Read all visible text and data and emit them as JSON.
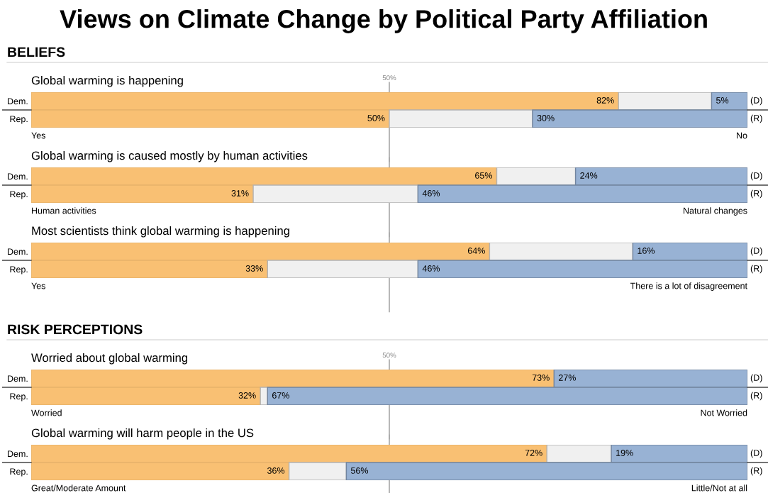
{
  "chart_data": [
    {
      "type": "other",
      "title": "Views on Climate Change by Political Party Affiliation"
    },
    {
      "type": "bar",
      "orientation": "horizontal",
      "stacked": true,
      "subtitle": "BELIEFS",
      "title": "Global warming is happening",
      "categories": [
        "Dem.",
        "Rep."
      ],
      "xlim": [
        0,
        100
      ],
      "tick_labels": "y",
      "grid": false,
      "legend": false,
      "series": [
        {
          "color": "#f9c073",
          "values": [
            82,
            50
          ],
          "value_labels": [
            "82%",
            "50%"
          ]
        },
        {
          "color": "#f0f0f0",
          "values": [
            13,
            20
          ]
        },
        {
          "color": "#98b2d4",
          "values": [
            5,
            30
          ],
          "value_labels": [
            "5%",
            "30%"
          ]
        }
      ],
      "ref_lines": [
        {
          "axis": "x",
          "value": 50,
          "label": "50%",
          "color": "#aaaaaa"
        }
      ],
      "annotations": [
        "Yes",
        "No",
        "(D)",
        "(R)"
      ]
    },
    {
      "type": "bar",
      "orientation": "horizontal",
      "stacked": true,
      "title": "Global warming is caused mostly by human activities",
      "categories": [
        "Dem.",
        "Rep."
      ],
      "xlim": [
        0,
        100
      ],
      "tick_labels": "y",
      "grid": false,
      "legend": false,
      "series": [
        {
          "color": "#f9c073",
          "values": [
            65,
            31
          ],
          "value_labels": [
            "65%",
            "31%"
          ]
        },
        {
          "color": "#f0f0f0",
          "values": [
            11,
            23
          ]
        },
        {
          "color": "#98b2d4",
          "values": [
            24,
            46
          ],
          "value_labels": [
            "24%",
            "46%"
          ]
        }
      ],
      "ref_lines": [
        {
          "axis": "x",
          "value": 50,
          "color": "#aaaaaa"
        }
      ],
      "annotations": [
        "Human activities",
        "Natural changes",
        "(D)",
        "(R)"
      ]
    },
    {
      "type": "bar",
      "orientation": "horizontal",
      "stacked": true,
      "title": "Most scientists think global warming is happening",
      "categories": [
        "Dem.",
        "Rep."
      ],
      "xlim": [
        0,
        100
      ],
      "tick_labels": "y",
      "grid": false,
      "legend": false,
      "series": [
        {
          "color": "#f9c073",
          "values": [
            64,
            33
          ],
          "value_labels": [
            "64%",
            "33%"
          ]
        },
        {
          "color": "#f0f0f0",
          "values": [
            20,
            21
          ]
        },
        {
          "color": "#98b2d4",
          "values": [
            16,
            46
          ],
          "value_labels": [
            "16%",
            "46%"
          ]
        }
      ],
      "ref_lines": [
        {
          "axis": "x",
          "value": 50,
          "color": "#aaaaaa"
        }
      ],
      "annotations": [
        "Yes",
        "There is a lot of disagreement",
        "(D)",
        "(R)"
      ]
    },
    {
      "type": "bar",
      "orientation": "horizontal",
      "stacked": true,
      "subtitle": "RISK PERCEPTIONS",
      "title": "Worried about global warming",
      "categories": [
        "Dem.",
        "Rep."
      ],
      "xlim": [
        0,
        100
      ],
      "tick_labels": "y",
      "grid": false,
      "legend": false,
      "series": [
        {
          "color": "#f9c073",
          "values": [
            73,
            32
          ],
          "value_labels": [
            "73%",
            "32%"
          ]
        },
        {
          "color": "#f0f0f0",
          "values": [
            0,
            1
          ]
        },
        {
          "color": "#98b2d4",
          "values": [
            27,
            67
          ],
          "value_labels": [
            "27%",
            "67%"
          ]
        }
      ],
      "ref_lines": [
        {
          "axis": "x",
          "value": 50,
          "label": "50%",
          "color": "#aaaaaa"
        }
      ],
      "annotations": [
        "Worried",
        "Not Worried",
        "(D)",
        "(R)"
      ]
    },
    {
      "type": "bar",
      "orientation": "horizontal",
      "stacked": true,
      "title": "Global warming will harm people in the US",
      "categories": [
        "Dem.",
        "Rep."
      ],
      "xlim": [
        0,
        100
      ],
      "tick_labels": "y",
      "grid": false,
      "legend": false,
      "series": [
        {
          "color": "#f9c073",
          "values": [
            72,
            36
          ],
          "value_labels": [
            "72%",
            "36%"
          ]
        },
        {
          "color": "#f0f0f0",
          "values": [
            9,
            8
          ]
        },
        {
          "color": "#98b2d4",
          "values": [
            19,
            56
          ],
          "value_labels": [
            "19%",
            "56%"
          ]
        }
      ],
      "ref_lines": [
        {
          "axis": "x",
          "value": 50,
          "color": "#aaaaaa"
        }
      ],
      "annotations": [
        "Great/Moderate Amount",
        "Little/Not at all",
        "(D)",
        "(R)"
      ]
    }
  ]
}
